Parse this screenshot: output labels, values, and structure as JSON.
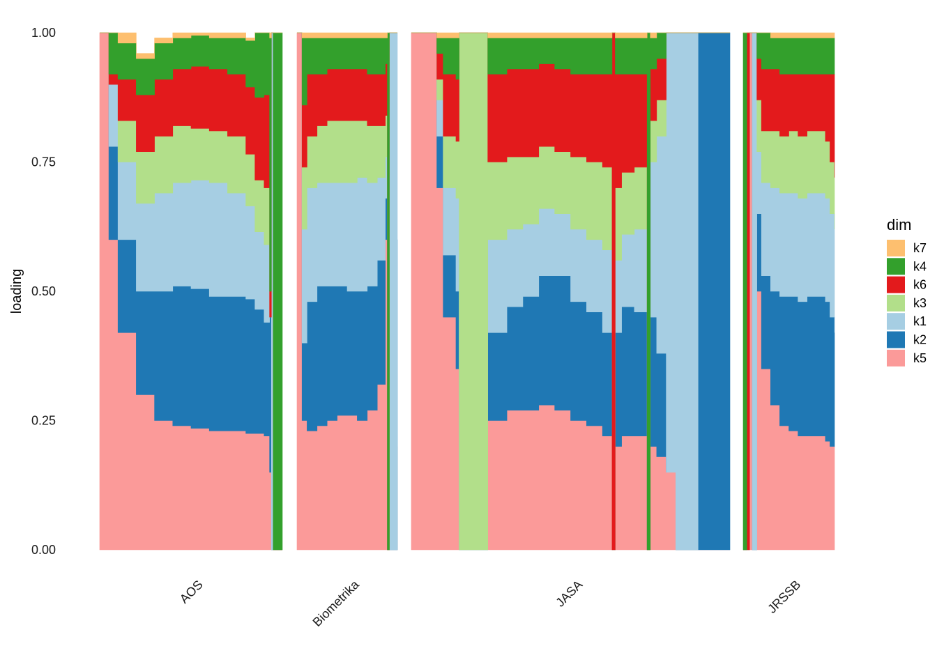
{
  "chart_data": {
    "type": "area",
    "subtype": "stacked-area-faceted",
    "title": "",
    "xlabel": "",
    "ylabel": "loading",
    "ylim": [
      0,
      1
    ],
    "yticks": [
      "0.00",
      "0.25",
      "0.50",
      "0.75",
      "1.00"
    ],
    "ytick_values": [
      0,
      0.25,
      0.5,
      0.75,
      1.0
    ],
    "stack_order": [
      "k5",
      "k2",
      "k1",
      "k3",
      "k6",
      "k4",
      "k7"
    ],
    "legend": {
      "title": "dim",
      "position": "right",
      "entries": [
        {
          "name": "k7",
          "color": "#FDBF6F"
        },
        {
          "name": "k4",
          "color": "#33A02C"
        },
        {
          "name": "k6",
          "color": "#E31A1C"
        },
        {
          "name": "k3",
          "color": "#B2DF8A"
        },
        {
          "name": "k1",
          "color": "#A6CEE3"
        },
        {
          "name": "k2",
          "color": "#1F78B4"
        },
        {
          "name": "k5",
          "color": "#FB9A99"
        }
      ]
    },
    "facets": [
      {
        "name": "AOS",
        "x": [
          0,
          0.02,
          0.05,
          0.1,
          0.2,
          0.3,
          0.4,
          0.5,
          0.6,
          0.7,
          0.8,
          0.85,
          0.9,
          0.93,
          0.94,
          0.95,
          1.0
        ],
        "series": {
          "k5": [
            1.0,
            1.0,
            0.6,
            0.42,
            0.3,
            0.25,
            0.24,
            0.235,
            0.23,
            0.23,
            0.225,
            0.225,
            0.22,
            0.15,
            0.0,
            0.0,
            0.0
          ],
          "k2": [
            0.0,
            0.0,
            0.18,
            0.18,
            0.2,
            0.25,
            0.27,
            0.27,
            0.26,
            0.26,
            0.26,
            0.24,
            0.22,
            0.3,
            0.0,
            0.0,
            0.0
          ],
          "k1": [
            0.0,
            0.0,
            0.12,
            0.15,
            0.17,
            0.19,
            0.2,
            0.21,
            0.22,
            0.2,
            0.18,
            0.15,
            0.15,
            0.0,
            1.0,
            0.0,
            0.0
          ],
          "k3": [
            0.0,
            0.0,
            0.0,
            0.08,
            0.1,
            0.11,
            0.11,
            0.1,
            0.1,
            0.11,
            0.1,
            0.1,
            0.11,
            0.0,
            0.0,
            0.0,
            0.0
          ],
          "k6": [
            0.0,
            0.0,
            0.02,
            0.08,
            0.11,
            0.11,
            0.11,
            0.12,
            0.12,
            0.12,
            0.13,
            0.16,
            0.18,
            0.05,
            0.0,
            0.0,
            0.0
          ],
          "k4": [
            0.0,
            0.0,
            0.08,
            0.07,
            0.07,
            0.07,
            0.06,
            0.06,
            0.06,
            0.07,
            0.09,
            0.14,
            0.12,
            0.49,
            0.0,
            1.0,
            1.0
          ],
          "k7": [
            0.0,
            0.0,
            0.0,
            0.02,
            0.01,
            0.01,
            0.01,
            0.005,
            0.01,
            0.01,
            0.005,
            0.005,
            0.0,
            0.01,
            0.0,
            0.0,
            0.0
          ]
        }
      },
      {
        "name": "Biometrika",
        "x": [
          0,
          0.05,
          0.1,
          0.2,
          0.3,
          0.4,
          0.5,
          0.6,
          0.7,
          0.8,
          0.88,
          0.9,
          0.92,
          1.0
        ],
        "series": {
          "k5": [
            1.0,
            0.25,
            0.23,
            0.24,
            0.25,
            0.26,
            0.26,
            0.25,
            0.27,
            0.32,
            0.6,
            0.0,
            0.0,
            0.2
          ],
          "k2": [
            0.0,
            0.15,
            0.25,
            0.27,
            0.26,
            0.25,
            0.24,
            0.25,
            0.24,
            0.24,
            0.08,
            0.0,
            0.0,
            0.4
          ],
          "k1": [
            0.0,
            0.22,
            0.22,
            0.2,
            0.2,
            0.2,
            0.21,
            0.22,
            0.2,
            0.16,
            0.08,
            0.0,
            1.0,
            0.4
          ],
          "k3": [
            0.0,
            0.12,
            0.1,
            0.11,
            0.12,
            0.12,
            0.12,
            0.11,
            0.11,
            0.1,
            0.08,
            0.0,
            0.0,
            0.0
          ],
          "k6": [
            0.0,
            0.12,
            0.12,
            0.1,
            0.1,
            0.1,
            0.1,
            0.1,
            0.1,
            0.1,
            0.1,
            0.0,
            0.0,
            0.0
          ],
          "k4": [
            0.0,
            0.13,
            0.07,
            0.07,
            0.06,
            0.06,
            0.06,
            0.06,
            0.07,
            0.07,
            0.05,
            1.0,
            0.0,
            0.0
          ],
          "k7": [
            0.0,
            0.01,
            0.01,
            0.01,
            0.01,
            0.01,
            0.01,
            0.01,
            0.01,
            0.01,
            0.01,
            0.0,
            0.0,
            0.0
          ]
        }
      },
      {
        "name": "JASA",
        "x": [
          0,
          0.05,
          0.08,
          0.1,
          0.14,
          0.15,
          0.16,
          0.2,
          0.24,
          0.3,
          0.35,
          0.4,
          0.45,
          0.5,
          0.55,
          0.6,
          0.63,
          0.64,
          0.66,
          0.7,
          0.74,
          0.75,
          0.77,
          0.8,
          0.83,
          0.86,
          0.9,
          0.94,
          1.0
        ],
        "series": {
          "k5": [
            1.0,
            1.0,
            0.7,
            0.45,
            0.35,
            0.0,
            0.0,
            0.0,
            0.25,
            0.27,
            0.27,
            0.28,
            0.27,
            0.25,
            0.24,
            0.22,
            0.0,
            0.2,
            0.22,
            0.22,
            0.0,
            0.2,
            0.18,
            0.15,
            0.0,
            0.0,
            0.0,
            0.0,
            0.0
          ],
          "k2": [
            0.0,
            0.0,
            0.1,
            0.12,
            0.15,
            0.0,
            0.0,
            0.0,
            0.17,
            0.2,
            0.22,
            0.25,
            0.26,
            0.23,
            0.22,
            0.2,
            0.0,
            0.22,
            0.25,
            0.24,
            0.0,
            0.25,
            0.2,
            0.0,
            0.0,
            0.0,
            1.0,
            1.0,
            1.0
          ],
          "k1": [
            0.0,
            0.0,
            0.07,
            0.13,
            0.18,
            0.0,
            0.0,
            0.0,
            0.18,
            0.15,
            0.14,
            0.13,
            0.12,
            0.14,
            0.14,
            0.16,
            0.0,
            0.14,
            0.14,
            0.16,
            0.0,
            0.3,
            0.42,
            0.85,
            1.0,
            1.0,
            0.0,
            0.0,
            0.0
          ],
          "k3": [
            0.0,
            0.0,
            0.04,
            0.1,
            0.11,
            1.0,
            1.0,
            1.0,
            0.15,
            0.14,
            0.13,
            0.12,
            0.12,
            0.14,
            0.15,
            0.16,
            0.0,
            0.14,
            0.12,
            0.12,
            0.0,
            0.08,
            0.07,
            0.0,
            0.0,
            0.0,
            0.0,
            0.0,
            0.0
          ],
          "k6": [
            0.0,
            0.0,
            0.05,
            0.12,
            0.12,
            0.0,
            0.0,
            0.0,
            0.17,
            0.17,
            0.17,
            0.16,
            0.16,
            0.16,
            0.17,
            0.18,
            1.0,
            0.22,
            0.19,
            0.18,
            0.0,
            0.1,
            0.08,
            0.0,
            0.0,
            0.0,
            0.0,
            0.0,
            0.0
          ],
          "k4": [
            0.0,
            0.0,
            0.03,
            0.07,
            0.08,
            0.0,
            0.0,
            0.0,
            0.07,
            0.06,
            0.06,
            0.05,
            0.06,
            0.07,
            0.07,
            0.07,
            0.0,
            0.07,
            0.07,
            0.07,
            1.0,
            0.06,
            0.05,
            0.0,
            0.0,
            0.0,
            0.0,
            0.0,
            0.0
          ],
          "k7": [
            0.0,
            0.0,
            0.01,
            0.01,
            0.01,
            0.0,
            0.0,
            0.0,
            0.01,
            0.01,
            0.01,
            0.01,
            0.01,
            0.01,
            0.01,
            0.01,
            0.0,
            0.01,
            0.01,
            0.01,
            0.0,
            0.01,
            0.0,
            0.0,
            0.0,
            0.0,
            0.0,
            0.0,
            0.0
          ]
        }
      },
      {
        "name": "JRSSB",
        "x": [
          0,
          0.04,
          0.07,
          0.1,
          0.15,
          0.2,
          0.3,
          0.4,
          0.5,
          0.6,
          0.7,
          0.8,
          0.9,
          0.95,
          1.0
        ],
        "series": {
          "k5": [
            0.0,
            0.0,
            1.0,
            0.0,
            0.5,
            0.35,
            0.28,
            0.24,
            0.23,
            0.22,
            0.22,
            0.22,
            0.21,
            0.2,
            0.2
          ],
          "k2": [
            0.0,
            0.0,
            0.0,
            0.0,
            0.15,
            0.18,
            0.22,
            0.25,
            0.26,
            0.26,
            0.27,
            0.27,
            0.27,
            0.25,
            0.22
          ],
          "k1": [
            0.0,
            0.0,
            0.0,
            1.0,
            0.12,
            0.18,
            0.2,
            0.2,
            0.2,
            0.2,
            0.2,
            0.2,
            0.2,
            0.2,
            0.2
          ],
          "k3": [
            0.0,
            0.0,
            0.0,
            0.0,
            0.1,
            0.1,
            0.11,
            0.11,
            0.12,
            0.12,
            0.12,
            0.12,
            0.11,
            0.1,
            0.1
          ],
          "k6": [
            0.0,
            1.0,
            0.0,
            0.0,
            0.08,
            0.12,
            0.12,
            0.12,
            0.11,
            0.12,
            0.11,
            0.11,
            0.13,
            0.17,
            0.2
          ],
          "k4": [
            1.0,
            0.0,
            0.0,
            0.0,
            0.05,
            0.07,
            0.06,
            0.07,
            0.07,
            0.07,
            0.07,
            0.07,
            0.07,
            0.07,
            0.07
          ],
          "k7": [
            0.0,
            0.0,
            0.0,
            0.0,
            0.0,
            0.0,
            0.01,
            0.01,
            0.01,
            0.01,
            0.01,
            0.01,
            0.01,
            0.01,
            0.01
          ]
        }
      }
    ]
  }
}
